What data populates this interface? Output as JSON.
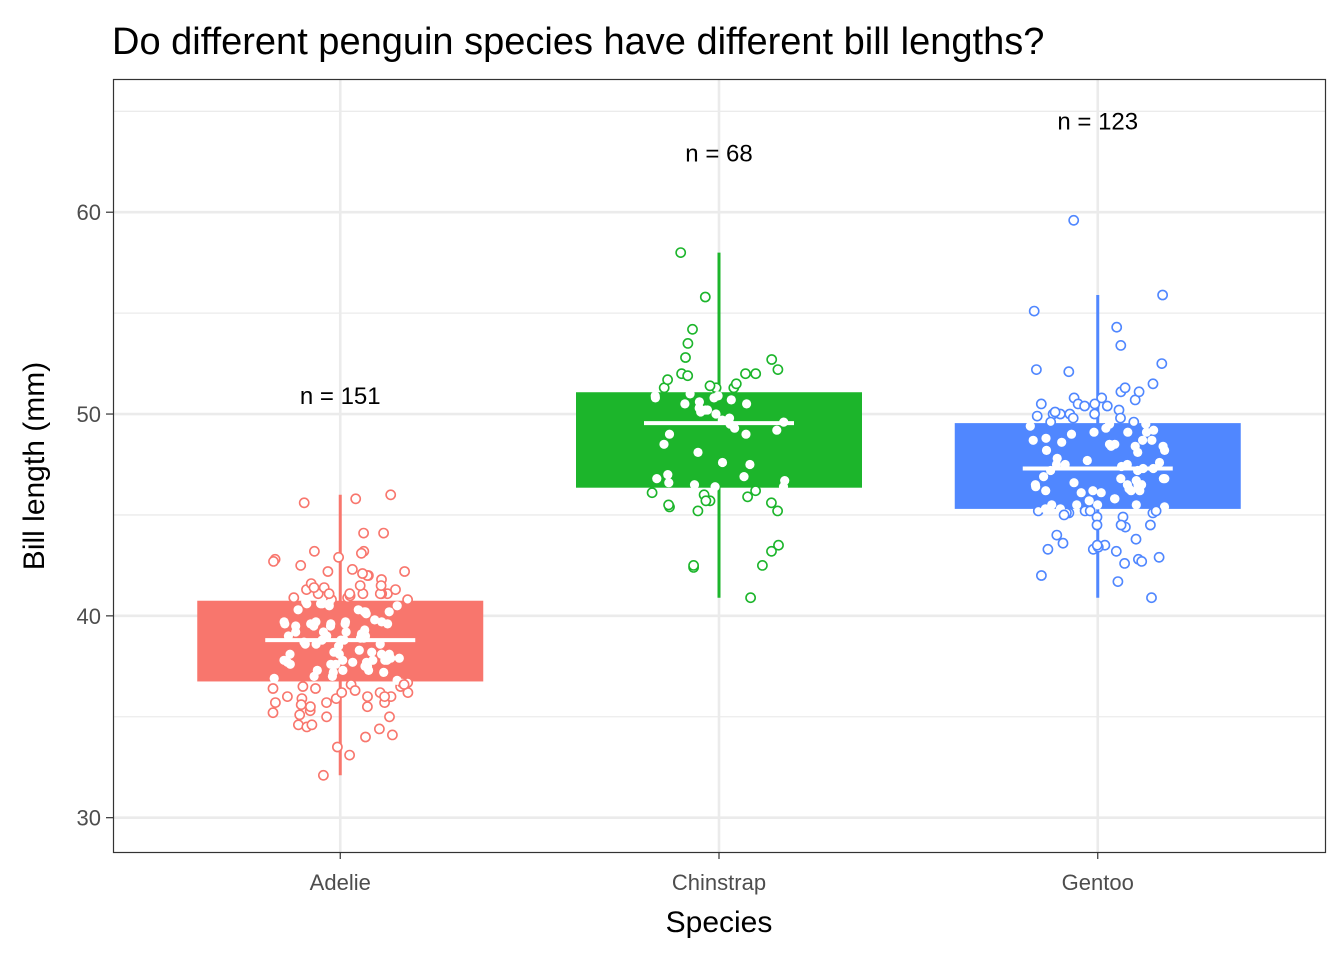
{
  "chart_data": {
    "type": "box",
    "title": "Do different penguin species have different bill lengths?",
    "xlabel": "Species",
    "ylabel": "Bill length (mm)",
    "ylim": [
      28.3,
      66.6
    ],
    "yticks": [
      30,
      40,
      50,
      60
    ],
    "grid": true,
    "legend": "none",
    "categories": [
      "Adelie",
      "Chinstrap",
      "Gentoo"
    ],
    "boxes": [
      {
        "category": "Adelie",
        "color": "#F8766D",
        "whisker_low": 32.1,
        "q1": 36.75,
        "median": 38.8,
        "q3": 40.75,
        "whisker_high": 46.0,
        "count_label": "n = 151"
      },
      {
        "category": "Chinstrap",
        "color": "#1CB52B",
        "whisker_low": 40.9,
        "q1": 46.35,
        "median": 49.55,
        "q3": 51.08,
        "whisker_high": 58.0,
        "count_label": "n = 68"
      },
      {
        "category": "Gentoo",
        "color": "#5087FF",
        "whisker_low": 40.9,
        "q1": 45.3,
        "median": 47.3,
        "q3": 49.55,
        "whisker_high": 55.9,
        "count_label": "n = 123"
      }
    ],
    "label_y": [
      50.9,
      62.9,
      64.5
    ],
    "points": {
      "Adelie": [
        39.1,
        39.5,
        40.3,
        36.7,
        39.3,
        38.9,
        39.2,
        34.1,
        42.0,
        37.8,
        37.8,
        41.1,
        38.6,
        34.6,
        36.6,
        38.7,
        42.5,
        34.4,
        46.0,
        37.8,
        37.7,
        35.9,
        38.2,
        38.8,
        35.3,
        40.6,
        40.5,
        37.9,
        40.5,
        39.5,
        37.2,
        39.5,
        40.9,
        36.4,
        39.2,
        38.8,
        42.2,
        37.6,
        39.8,
        36.5,
        40.8,
        36.0,
        44.1,
        37.0,
        39.6,
        41.1,
        37.5,
        36.0,
        42.3,
        39.6,
        40.1,
        35.0,
        42.0,
        34.5,
        41.4,
        39.0,
        40.6,
        36.5,
        37.6,
        35.7,
        41.3,
        37.6,
        41.1,
        36.4,
        41.6,
        35.5,
        41.1,
        35.9,
        41.8,
        33.5,
        39.7,
        39.6,
        45.8,
        35.5,
        42.8,
        40.9,
        37.2,
        36.2,
        42.1,
        34.6,
        42.9,
        36.7,
        35.1,
        37.3,
        41.3,
        36.3,
        36.9,
        38.3,
        38.9,
        35.7,
        41.1,
        34.0,
        39.6,
        36.2,
        40.8,
        38.1,
        40.3,
        33.1,
        43.2,
        35.0,
        41.0,
        37.7,
        37.8,
        37.9,
        39.7,
        38.6,
        38.2,
        38.1,
        43.2,
        38.1,
        45.6,
        39.7,
        42.2,
        39.6,
        42.7,
        38.6,
        37.3,
        35.7,
        41.1,
        36.2,
        37.7,
        40.2,
        41.4,
        35.2,
        40.6,
        38.8,
        41.5,
        39.0,
        44.1,
        38.5,
        43.1,
        36.8,
        37.5,
        38.1,
        41.1,
        35.6,
        40.2,
        37.0,
        39.7,
        40.2,
        40.6,
        32.1,
        40.7,
        37.3,
        39.0,
        39.2,
        36.6,
        36.0,
        37.8,
        36.0,
        41.5
      ],
      "Chinstrap": [
        46.5,
        50.0,
        51.3,
        45.4,
        52.7,
        45.2,
        46.1,
        51.3,
        46.0,
        51.3,
        46.6,
        51.7,
        47.0,
        52.0,
        45.9,
        50.5,
        50.3,
        58.0,
        46.4,
        49.2,
        42.4,
        48.5,
        43.2,
        50.6,
        46.7,
        52.0,
        50.5,
        49.5,
        46.4,
        52.8,
        40.9,
        54.2,
        42.5,
        51.0,
        49.7,
        47.5,
        47.6,
        52.0,
        46.9,
        53.5,
        49.0,
        46.2,
        50.9,
        45.5,
        50.9,
        50.8,
        50.1,
        49.0,
        51.5,
        49.8,
        48.1,
        51.4,
        45.7,
        50.7,
        42.5,
        52.2,
        45.2,
        49.3,
        50.2,
        45.6,
        51.9,
        46.8,
        45.7,
        55.8,
        43.5,
        49.6,
        50.8,
        50.2
      ],
      "Gentoo": [
        46.1,
        50.0,
        48.7,
        50.0,
        47.6,
        46.5,
        45.4,
        46.7,
        43.3,
        46.8,
        40.9,
        49.0,
        45.5,
        48.4,
        45.8,
        49.3,
        42.0,
        49.2,
        46.2,
        48.7,
        50.2,
        45.1,
        46.5,
        46.3,
        42.9,
        46.1,
        44.5,
        47.8,
        48.2,
        50.0,
        47.3,
        42.8,
        45.1,
        59.6,
        49.1,
        48.4,
        42.6,
        44.4,
        44.0,
        48.7,
        42.7,
        49.6,
        45.3,
        49.6,
        50.5,
        43.6,
        45.5,
        50.5,
        44.9,
        45.2,
        46.6,
        48.5,
        45.1,
        50.1,
        46.5,
        45.0,
        43.8,
        45.5,
        43.2,
        50.4,
        45.3,
        46.2,
        45.7,
        54.3,
        45.8,
        49.8,
        46.2,
        49.5,
        43.5,
        50.7,
        47.7,
        46.4,
        48.2,
        46.5,
        46.4,
        48.6,
        47.5,
        51.1,
        45.2,
        45.2,
        49.1,
        52.5,
        47.4,
        50.0,
        44.9,
        50.8,
        43.4,
        51.3,
        47.5,
        52.1,
        47.5,
        52.2,
        45.5,
        49.5,
        44.5,
        50.8,
        49.4,
        46.9,
        48.4,
        51.1,
        48.5,
        55.9,
        47.2,
        49.1,
        47.3,
        46.8,
        41.7,
        53.4,
        43.3,
        48.1,
        50.5,
        49.8,
        43.5,
        51.5,
        46.2,
        55.1,
        44.5,
        48.8,
        47.2,
        46.8,
        50.4,
        45.2,
        49.9
      ]
    }
  }
}
